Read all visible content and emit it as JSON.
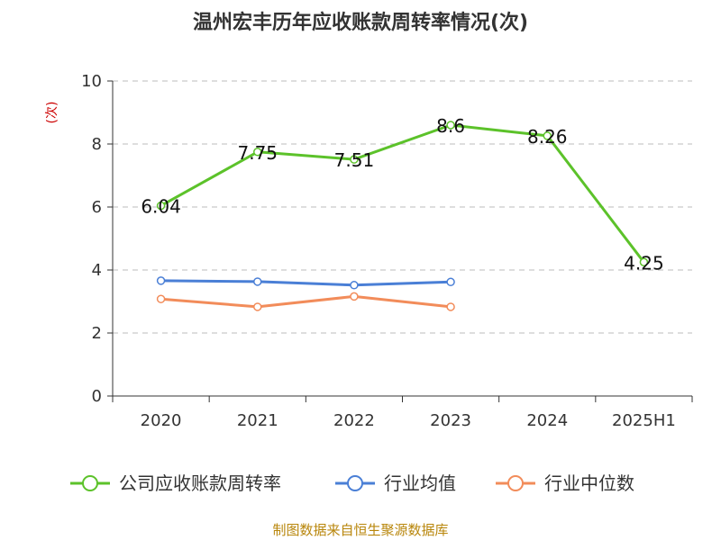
{
  "chart_data": {
    "type": "line",
    "title": "温州宏丰历年应收账款周转率情况(次)",
    "ylabel": "(次)",
    "categories": [
      "2020",
      "2021",
      "2022",
      "2023",
      "2024",
      "2025H1"
    ],
    "ylim": [
      0,
      10
    ],
    "yticks": [
      0,
      2,
      4,
      6,
      8,
      10
    ],
    "grid": true,
    "legend_position": "bottom",
    "series": [
      {
        "name": "公司应收账款周转率",
        "color": "#5cc22a",
        "values": [
          6.04,
          7.75,
          7.51,
          8.6,
          8.26,
          4.25
        ],
        "labels": [
          "6.04",
          "7.75",
          "7.51",
          "8.6",
          "8.26",
          "4.25"
        ]
      },
      {
        "name": "行业均值",
        "color": "#4a7fd6",
        "values": [
          3.66,
          3.63,
          3.52,
          3.62,
          null,
          null
        ]
      },
      {
        "name": "行业中位数",
        "color": "#f28c5a",
        "values": [
          3.08,
          2.83,
          3.16,
          2.83,
          null,
          null
        ]
      }
    ],
    "source": "制图数据来自恒生聚源数据库"
  }
}
